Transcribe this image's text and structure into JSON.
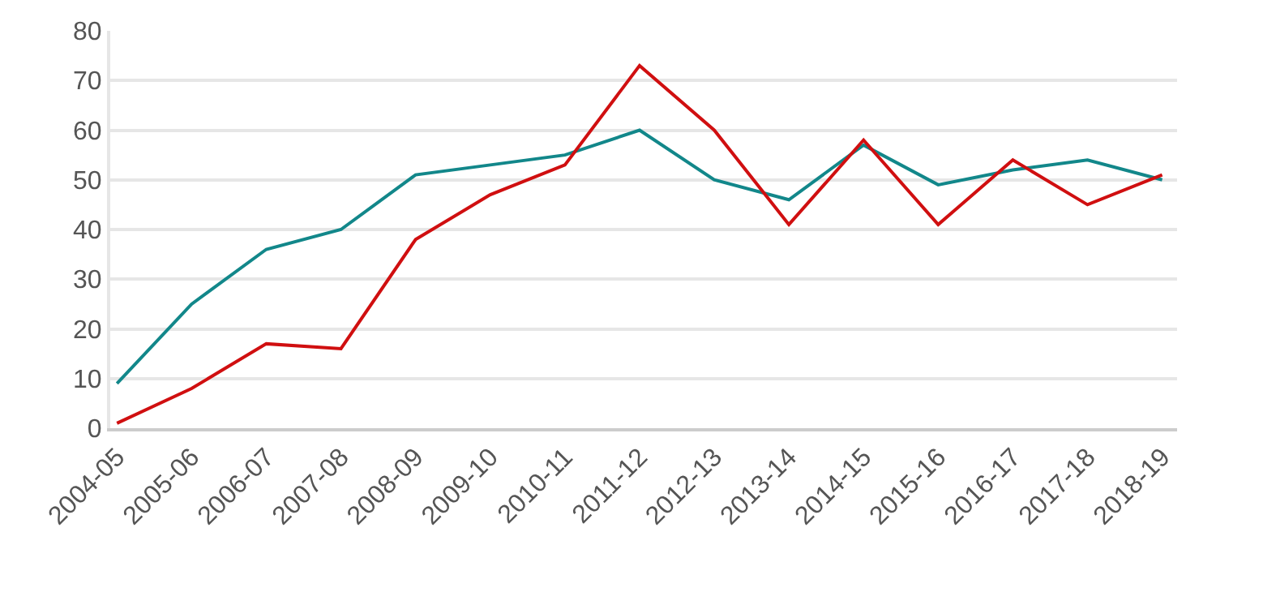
{
  "chart_data": {
    "type": "line",
    "categories": [
      "2004-05",
      "2005-06",
      "2006-07",
      "2007-08",
      "2008-09",
      "2009-10",
      "2010-11",
      "2011-12",
      "2012-13",
      "2013-14",
      "2014-15",
      "2015-16",
      "2016-17",
      "2017-18",
      "2018-19"
    ],
    "series": [
      {
        "color": "#12878a",
        "values": [
          9,
          25,
          36,
          40,
          51,
          53,
          55,
          60,
          50,
          46,
          57,
          49,
          52,
          54,
          50
        ]
      },
      {
        "color": "#d00f10",
        "values": [
          1,
          8,
          17,
          16,
          38,
          47,
          53,
          73,
          60,
          41,
          58,
          41,
          54,
          45,
          51
        ]
      }
    ],
    "ylim": [
      0,
      80
    ],
    "yticks": [
      0,
      10,
      20,
      30,
      40,
      50,
      60,
      70,
      80
    ],
    "grid": "y",
    "legend": false,
    "marker": "none",
    "line_style": "solid"
  }
}
